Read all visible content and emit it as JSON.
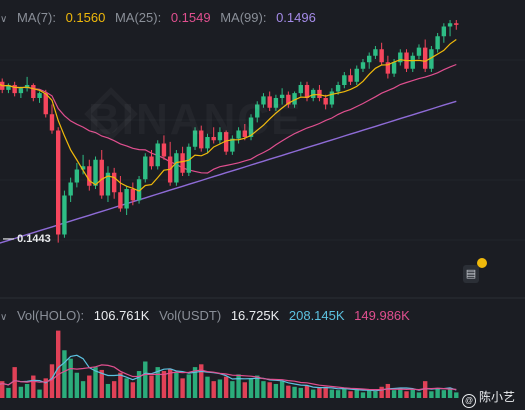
{
  "legend": {
    "ma7_label": "MA(7):",
    "ma7_value": "0.1560",
    "ma25_label": "MA(25):",
    "ma25_value": "0.1549",
    "ma99_label": "MA(99):",
    "ma99_value": "0.1496"
  },
  "vol_legend": {
    "holo_label": "Vol(HOLO):",
    "holo_value": "106.761K",
    "usdt_label": "Vol(USDT)",
    "usdt_value": "16.725K",
    "ma5_value": "208.145K",
    "ma10_value": "149.986K"
  },
  "low_label": "0.1443",
  "watermark": "BINANCE",
  "user_tag": "陈小艺",
  "colors": {
    "up": "#2ebd85",
    "down": "#f6465d",
    "ma7": "#f0b90b",
    "ma25": "#e04f8f",
    "ma99": "#8e6bd6",
    "vol_ma5": "#5cc2e0",
    "vol_ma10": "#e04f8f",
    "background": "#1b1d23",
    "divider": "#2b2f36"
  },
  "chart_data": {
    "type": "candlestick",
    "price_range": [
      0.142,
      0.158
    ],
    "candles": [
      [
        0.154,
        0.1544,
        0.1538,
        0.1542
      ],
      [
        0.1542,
        0.1544,
        0.1535,
        0.1537
      ],
      [
        0.1537,
        0.1541,
        0.1535,
        0.154
      ],
      [
        0.154,
        0.1542,
        0.1533,
        0.1535
      ],
      [
        0.1535,
        0.1539,
        0.1532,
        0.1538
      ],
      [
        0.1538,
        0.1545,
        0.1536,
        0.154
      ],
      [
        0.154,
        0.1541,
        0.153,
        0.1532
      ],
      [
        0.1532,
        0.1536,
        0.1529,
        0.1535
      ],
      [
        0.1535,
        0.1537,
        0.152,
        0.1522
      ],
      [
        0.1522,
        0.1528,
        0.151,
        0.1512
      ],
      [
        0.1512,
        0.1514,
        0.1443,
        0.1448
      ],
      [
        0.1448,
        0.1475,
        0.1446,
        0.1472
      ],
      [
        0.1472,
        0.1483,
        0.1468,
        0.148
      ],
      [
        0.148,
        0.1492,
        0.1477,
        0.1488
      ],
      [
        0.1488,
        0.1497,
        0.1485,
        0.149
      ],
      [
        0.149,
        0.1494,
        0.1475,
        0.1478
      ],
      [
        0.1478,
        0.1496,
        0.1476,
        0.1494
      ],
      [
        0.1494,
        0.15,
        0.147,
        0.1472
      ],
      [
        0.1472,
        0.149,
        0.1468,
        0.1486
      ],
      [
        0.1486,
        0.1489,
        0.147,
        0.1474
      ],
      [
        0.1474,
        0.1484,
        0.1462,
        0.1464
      ],
      [
        0.1464,
        0.1478,
        0.146,
        0.1476
      ],
      [
        0.1476,
        0.148,
        0.1466,
        0.1469
      ],
      [
        0.1469,
        0.1484,
        0.1467,
        0.1482
      ],
      [
        0.1482,
        0.1498,
        0.148,
        0.1496
      ],
      [
        0.1496,
        0.15,
        0.1488,
        0.149
      ],
      [
        0.149,
        0.1506,
        0.1488,
        0.1504
      ],
      [
        0.1504,
        0.1509,
        0.1494,
        0.1496
      ],
      [
        0.1496,
        0.1505,
        0.1478,
        0.148
      ],
      [
        0.148,
        0.15,
        0.1478,
        0.1498
      ],
      [
        0.1498,
        0.1502,
        0.1484,
        0.1486
      ],
      [
        0.1486,
        0.1504,
        0.1484,
        0.1502
      ],
      [
        0.1502,
        0.1514,
        0.15,
        0.1512
      ],
      [
        0.1512,
        0.1515,
        0.1499,
        0.1501
      ],
      [
        0.1501,
        0.151,
        0.1498,
        0.1508
      ],
      [
        0.1508,
        0.1514,
        0.1504,
        0.1506
      ],
      [
        0.1506,
        0.1514,
        0.1504,
        0.1511
      ],
      [
        0.1511,
        0.1512,
        0.1497,
        0.1499
      ],
      [
        0.1499,
        0.1509,
        0.1497,
        0.1507
      ],
      [
        0.1507,
        0.1514,
        0.1504,
        0.1512
      ],
      [
        0.1512,
        0.1516,
        0.1506,
        0.1508
      ],
      [
        0.1508,
        0.1522,
        0.1506,
        0.152
      ],
      [
        0.152,
        0.153,
        0.1517,
        0.1528
      ],
      [
        0.1528,
        0.1535,
        0.1526,
        0.1533
      ],
      [
        0.1533,
        0.1536,
        0.1524,
        0.1526
      ],
      [
        0.1526,
        0.1534,
        0.1524,
        0.1532
      ],
      [
        0.1532,
        0.1538,
        0.1528,
        0.1534
      ],
      [
        0.1534,
        0.1536,
        0.1526,
        0.1528
      ],
      [
        0.1528,
        0.1536,
        0.1526,
        0.1535
      ],
      [
        0.1535,
        0.1542,
        0.1533,
        0.154
      ],
      [
        0.154,
        0.1542,
        0.153,
        0.1532
      ],
      [
        0.1532,
        0.1538,
        0.153,
        0.1537
      ],
      [
        0.1537,
        0.154,
        0.153,
        0.1532
      ],
      [
        0.1532,
        0.1534,
        0.1525,
        0.1528
      ],
      [
        0.1528,
        0.1538,
        0.1526,
        0.1536
      ],
      [
        0.1536,
        0.1542,
        0.1534,
        0.154
      ],
      [
        0.154,
        0.1548,
        0.1538,
        0.1546
      ],
      [
        0.1546,
        0.155,
        0.154,
        0.1542
      ],
      [
        0.1542,
        0.1552,
        0.154,
        0.155
      ],
      [
        0.155,
        0.1556,
        0.1548,
        0.1554
      ],
      [
        0.1554,
        0.156,
        0.155,
        0.1558
      ],
      [
        0.1558,
        0.1564,
        0.1556,
        0.1562
      ],
      [
        0.1562,
        0.1566,
        0.1552,
        0.1554
      ],
      [
        0.1554,
        0.1558,
        0.1544,
        0.1547
      ],
      [
        0.1547,
        0.1556,
        0.1545,
        0.1554
      ],
      [
        0.1554,
        0.1562,
        0.1552,
        0.156
      ],
      [
        0.156,
        0.1562,
        0.1548,
        0.155
      ],
      [
        0.155,
        0.156,
        0.1548,
        0.1558
      ],
      [
        0.1558,
        0.1565,
        0.1556,
        0.1563
      ],
      [
        0.1563,
        0.1568,
        0.1548,
        0.155
      ],
      [
        0.155,
        0.1564,
        0.1548,
        0.1562
      ],
      [
        0.1562,
        0.1572,
        0.156,
        0.157
      ],
      [
        0.157,
        0.1578,
        0.1566,
        0.1576
      ],
      [
        0.1576,
        0.158,
        0.157,
        0.1578
      ],
      [
        0.1578,
        0.158,
        0.1574,
        0.1577
      ]
    ],
    "volumes": [
      [
        22,
        1
      ],
      [
        30,
        0
      ],
      [
        18,
        1
      ],
      [
        55,
        0
      ],
      [
        20,
        1
      ],
      [
        25,
        1
      ],
      [
        40,
        0
      ],
      [
        15,
        1
      ],
      [
        35,
        0
      ],
      [
        60,
        0
      ],
      [
        120,
        0
      ],
      [
        85,
        1
      ],
      [
        70,
        1
      ],
      [
        45,
        1
      ],
      [
        30,
        1
      ],
      [
        40,
        0
      ],
      [
        55,
        1
      ],
      [
        50,
        0
      ],
      [
        25,
        1
      ],
      [
        30,
        0
      ],
      [
        45,
        0
      ],
      [
        35,
        1
      ],
      [
        28,
        0
      ],
      [
        48,
        1
      ],
      [
        65,
        1
      ],
      [
        40,
        0
      ],
      [
        55,
        1
      ],
      [
        48,
        0
      ],
      [
        52,
        0
      ],
      [
        45,
        1
      ],
      [
        35,
        0
      ],
      [
        42,
        1
      ],
      [
        55,
        1
      ],
      [
        60,
        0
      ],
      [
        38,
        1
      ],
      [
        30,
        0
      ],
      [
        33,
        1
      ],
      [
        38,
        0
      ],
      [
        30,
        1
      ],
      [
        42,
        1
      ],
      [
        28,
        0
      ],
      [
        35,
        1
      ],
      [
        40,
        1
      ],
      [
        30,
        1
      ],
      [
        28,
        0
      ],
      [
        25,
        1
      ],
      [
        30,
        1
      ],
      [
        22,
        0
      ],
      [
        20,
        1
      ],
      [
        18,
        1
      ],
      [
        22,
        0
      ],
      [
        15,
        1
      ],
      [
        18,
        0
      ],
      [
        20,
        0
      ],
      [
        15,
        1
      ],
      [
        14,
        1
      ],
      [
        18,
        1
      ],
      [
        12,
        0
      ],
      [
        16,
        1
      ],
      [
        10,
        1
      ],
      [
        14,
        1
      ],
      [
        12,
        1
      ],
      [
        20,
        0
      ],
      [
        25,
        0
      ],
      [
        14,
        1
      ],
      [
        18,
        1
      ],
      [
        12,
        0
      ],
      [
        15,
        1
      ],
      [
        10,
        1
      ],
      [
        30,
        0
      ],
      [
        12,
        1
      ],
      [
        18,
        1
      ],
      [
        14,
        1
      ],
      [
        16,
        1
      ],
      [
        10,
        1
      ]
    ],
    "volume_range": [
      0,
      130
    ]
  }
}
